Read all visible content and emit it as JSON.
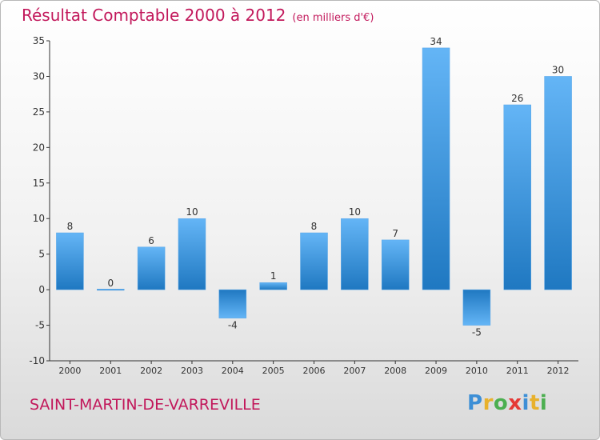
{
  "title": "Résultat Comptable 2000 à 2012",
  "subtitle": "(en milliers d'€)",
  "commune": "SAINT-MARTIN-DE-VARREVILLE",
  "logo": {
    "text": "Proxiti",
    "letter_colors": [
      "#3d8fd6",
      "#e8b12c",
      "#4caf50",
      "#e53935",
      "#3d8fd6",
      "#e8b12c",
      "#4caf50"
    ]
  },
  "colors": {
    "title": "#c2185b",
    "bar_light": "#64b5f6",
    "bar_dark": "#1f78c1",
    "axis": "#333333"
  },
  "chart_data": {
    "type": "bar",
    "categories": [
      "2000",
      "2001",
      "2002",
      "2003",
      "2004",
      "2005",
      "2006",
      "2007",
      "2008",
      "2009",
      "2010",
      "2011",
      "2012"
    ],
    "values": [
      8,
      0,
      6,
      10,
      -4,
      1,
      8,
      10,
      7,
      34,
      -5,
      26,
      30
    ],
    "ylim": [
      -10,
      35
    ],
    "yticks": [
      -10,
      -5,
      0,
      5,
      10,
      15,
      20,
      25,
      30,
      35
    ],
    "grid": false,
    "xlabel": "",
    "ylabel": ""
  }
}
